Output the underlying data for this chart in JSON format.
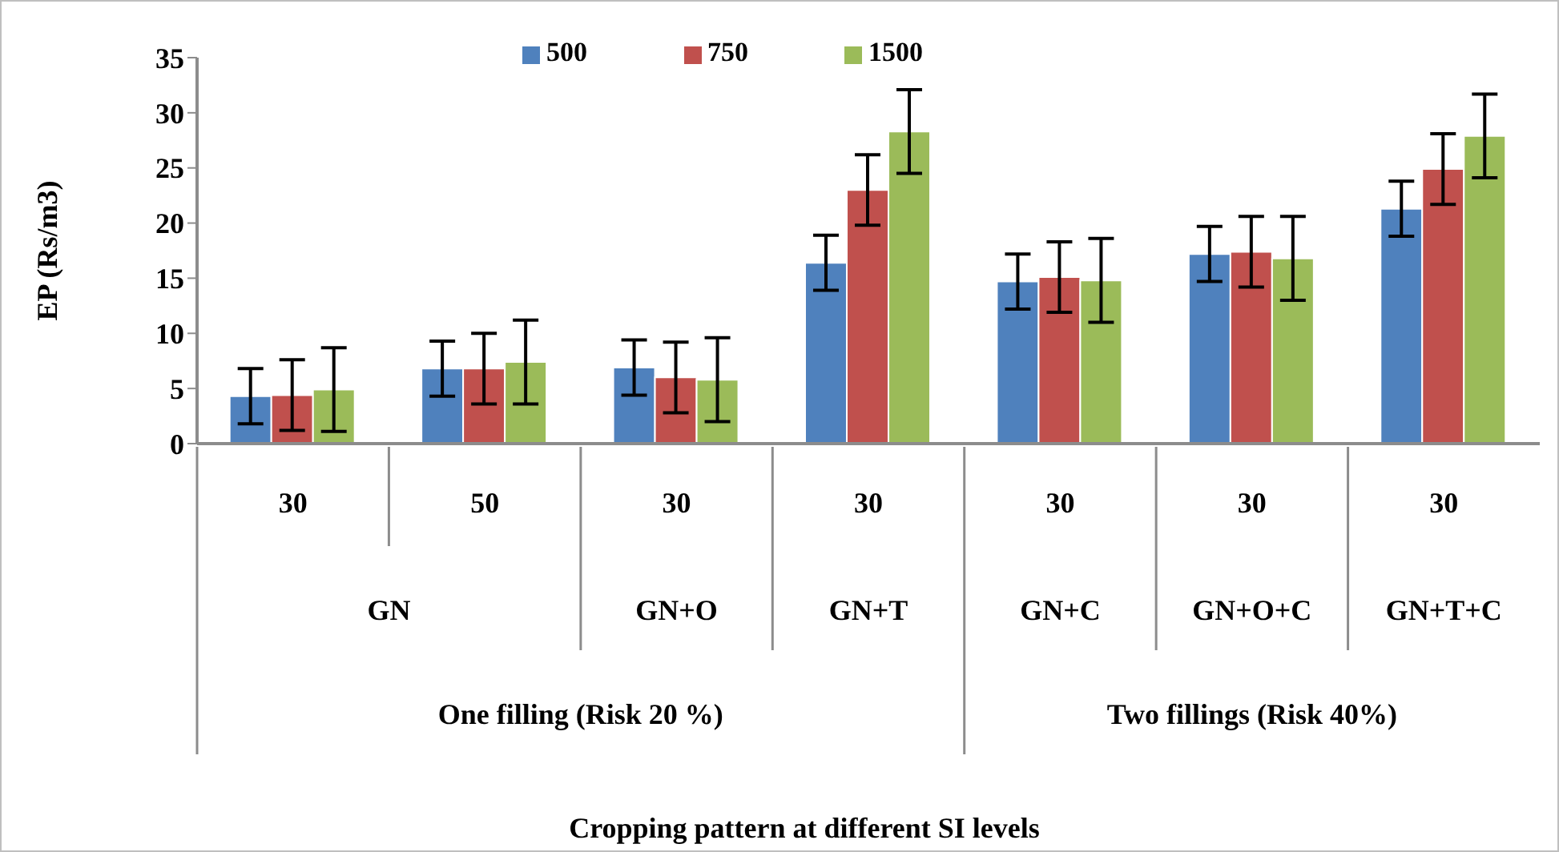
{
  "chart_data": {
    "type": "bar",
    "ylabel": "EP (Rs/m3)",
    "categories": [
      "30",
      "50",
      "30",
      "30",
      "30",
      "30",
      "30"
    ],
    "series": [
      {
        "name": "500",
        "color": "#4f81bd",
        "values": [
          4.3,
          6.8,
          6.9,
          16.4,
          14.7,
          17.2,
          21.3
        ],
        "errors": [
          2.5,
          2.5,
          2.5,
          2.5,
          2.5,
          2.5,
          2.5
        ]
      },
      {
        "name": "750",
        "color": "#c0504d",
        "values": [
          4.4,
          6.8,
          6.0,
          23.0,
          15.1,
          17.4,
          24.9
        ],
        "errors": [
          3.2,
          3.2,
          3.2,
          3.2,
          3.2,
          3.2,
          3.2
        ]
      },
      {
        "name": "1500",
        "color": "#9bbb59",
        "values": [
          4.9,
          7.4,
          5.8,
          28.3,
          14.8,
          16.8,
          27.9
        ],
        "errors": [
          3.8,
          3.8,
          3.8,
          3.8,
          3.8,
          3.8,
          3.8
        ]
      }
    ],
    "ylim": [
      0,
      35
    ],
    "yticks": [
      0,
      5,
      10,
      15,
      20,
      25,
      30,
      35
    ],
    "grid": false,
    "legend": "top",
    "annotations": [
      "GN",
      "GN+O",
      "GN+T",
      "GN+C",
      "GN+O+C",
      "GN+T+C",
      "One filling (Risk 20 %)",
      "Two fillings (Risk 40%)",
      "Cropping pattern at different SI levels"
    ]
  }
}
